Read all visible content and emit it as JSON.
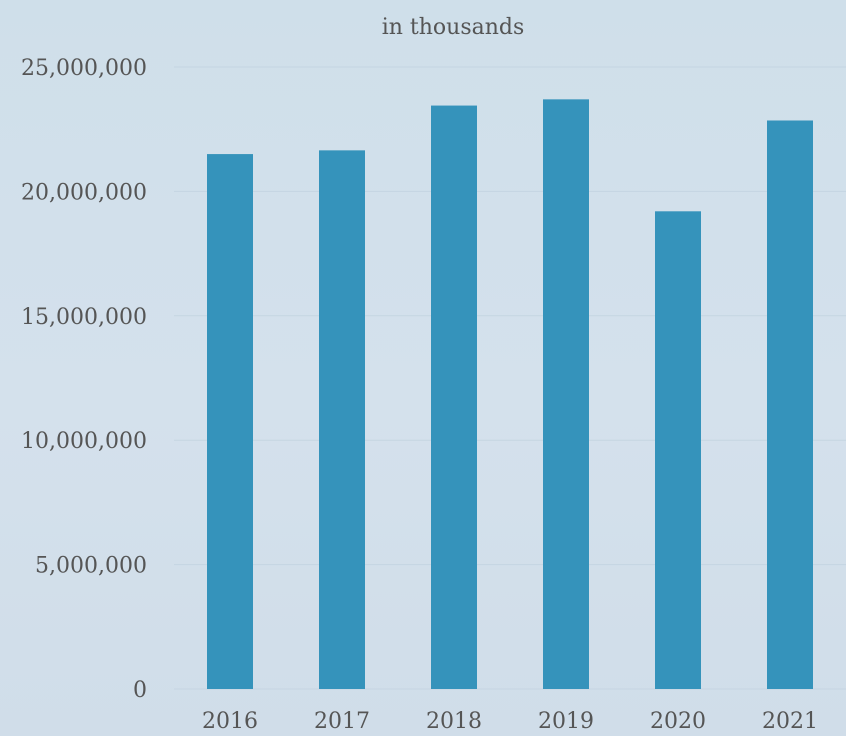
{
  "chart_data": {
    "type": "bar",
    "title": "in thousands",
    "categories": [
      "2016",
      "2017",
      "2018",
      "2019",
      "2020",
      "2021"
    ],
    "values": [
      21500000,
      21650000,
      23450000,
      23700000,
      19200000,
      22850000
    ],
    "ylim": [
      0,
      25000000
    ],
    "yticks": [
      "0",
      "5,000,000",
      "10,000,000",
      "15,000,000",
      "20,000,000",
      "25,000,000"
    ],
    "grid": true,
    "bar_color": "#3593bb",
    "grid_color": "#c5d5e2"
  }
}
